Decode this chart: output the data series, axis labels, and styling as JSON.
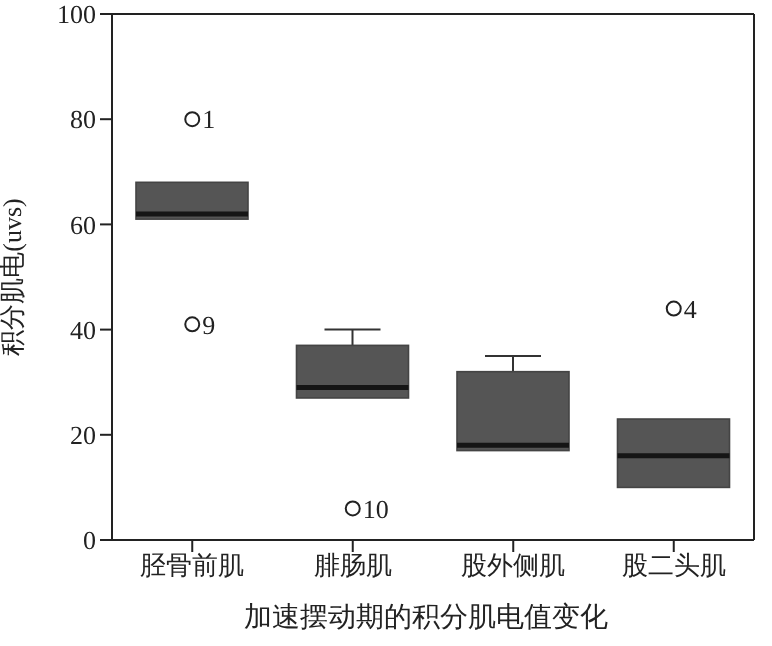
{
  "chart_data": {
    "type": "box",
    "xlabel": "加速摆动期的积分肌电值变化",
    "ylabel": "积分肌电(uvs)",
    "categories": [
      "胫骨前肌",
      "腓肠肌",
      "股外侧肌",
      "股二头肌"
    ],
    "color": "#555555",
    "boxes": [
      {
        "low": 61,
        "q1": 61,
        "median": 62,
        "q3": 68,
        "high": 68,
        "outliers": [
          80,
          41
        ]
      },
      {
        "low": 27,
        "q1": 27,
        "median": 29,
        "q3": 37,
        "high": 40,
        "outliers": [
          6
        ]
      },
      {
        "low": 17,
        "q1": 17,
        "median": 18,
        "q3": 32,
        "high": 35
      },
      {
        "low": 10,
        "q1": 10,
        "median": 16,
        "q3": 23,
        "high": 23,
        "outliers": [
          44
        ]
      }
    ],
    "annotations": [
      "1",
      "9",
      "10",
      "4"
    ],
    "ylim": [
      0,
      100
    ],
    "yticks": [
      0,
      20,
      40,
      60,
      80,
      100
    ],
    "grid": false,
    "legend": false
  }
}
